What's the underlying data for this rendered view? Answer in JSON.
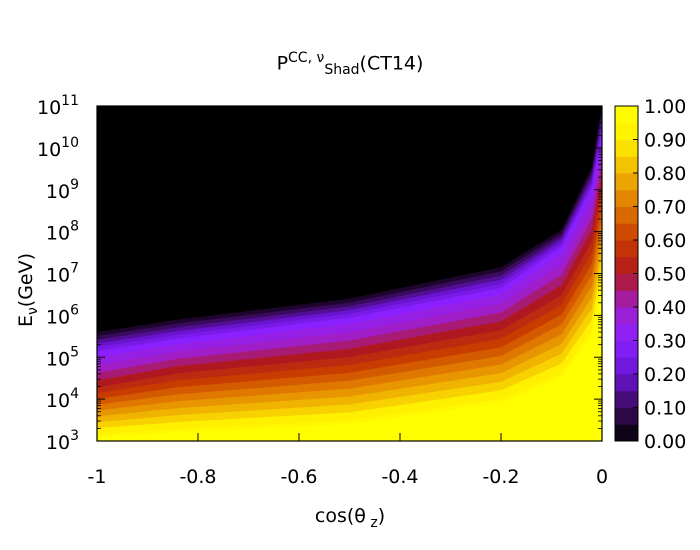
{
  "chart_data": {
    "type": "heatmap",
    "title": {
      "base": "P",
      "sup": "CC, ν",
      "sub": "Shad",
      "tail": "(CT14)"
    },
    "xlabel": {
      "pre": "cos(θ",
      "sub": " z",
      "post": ")"
    },
    "ylabel": {
      "base": "E",
      "sub": "ν",
      "tail": "(GeV)"
    },
    "xlim": [
      -1,
      0
    ],
    "ylim_log10": [
      3,
      11
    ],
    "y_scale": "log",
    "x_ticks": [
      "-1",
      "-0.8",
      "-0.6",
      "-0.4",
      "-0.2",
      "0"
    ],
    "x_tick_values": [
      -1,
      -0.8,
      -0.6,
      -0.4,
      -0.2,
      0
    ],
    "y_tick_exponents": [
      "3",
      "4",
      "5",
      "6",
      "7",
      "8",
      "9",
      "10",
      "11"
    ],
    "y_tick_base": "10",
    "colorbar": {
      "range": [
        0,
        1
      ],
      "ticks": [
        "0.00",
        "0.10",
        "0.20",
        "0.30",
        "0.40",
        "0.50",
        "0.60",
        "0.70",
        "0.80",
        "0.90",
        "1.00"
      ],
      "levels": 20,
      "colormap": "gnuplot",
      "stops": [
        "#000000",
        "#3a0a5c",
        "#6a14d0",
        "#8a20ff",
        "#a01ec8",
        "#b01820",
        "#c83c00",
        "#e07800",
        "#f0b400",
        "#fff000",
        "#ffff00"
      ]
    },
    "contours": [
      {
        "level": 0.05,
        "points": [
          [
            -1,
            5.55
          ],
          [
            -0.84,
            5.85
          ],
          [
            -0.5,
            6.35
          ],
          [
            -0.2,
            7.1
          ],
          [
            -0.08,
            8.0
          ],
          [
            -0.02,
            9.5
          ],
          [
            0,
            11
          ]
        ]
      },
      {
        "level": 0.3,
        "points": [
          [
            -1,
            5.1
          ],
          [
            -0.84,
            5.4
          ],
          [
            -0.5,
            5.9
          ],
          [
            -0.2,
            6.6
          ],
          [
            -0.08,
            7.6
          ],
          [
            -0.02,
            9.0
          ],
          [
            0,
            10.3
          ]
        ]
      },
      {
        "level": 0.5,
        "points": [
          [
            -1,
            4.35
          ],
          [
            -0.84,
            4.7
          ],
          [
            -0.5,
            5.1
          ],
          [
            -0.2,
            5.75
          ],
          [
            -0.08,
            6.6
          ],
          [
            -0.02,
            7.9
          ],
          [
            0,
            9.3
          ]
        ]
      },
      {
        "level": 0.95,
        "points": [
          [
            -1,
            3.1
          ],
          [
            -0.84,
            3.2
          ],
          [
            -0.5,
            3.4
          ],
          [
            -0.2,
            3.9
          ],
          [
            -0.08,
            4.5
          ],
          [
            -0.02,
            5.5
          ],
          [
            0,
            6.8
          ]
        ]
      }
    ],
    "grid": false,
    "legend": "colorbar-right"
  }
}
